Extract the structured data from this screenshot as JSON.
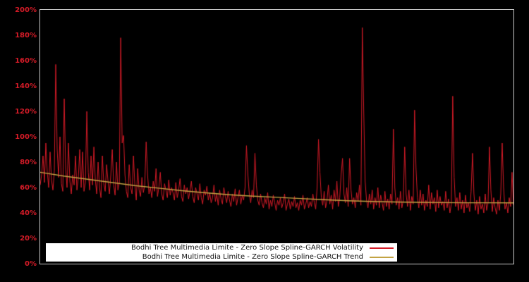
{
  "page": {
    "background": "#000000"
  },
  "chart": {
    "y_axis": {
      "ticks": [
        "0%",
        "20%",
        "40%",
        "60%",
        "80%",
        "100%",
        "120%",
        "140%",
        "160%",
        "180%",
        "200%"
      ],
      "min": 0,
      "max": 200,
      "tick_step": 20,
      "label_color": "#d41b27"
    },
    "colors": {
      "volatility_line": "#d41b27",
      "trend_line": "#c3a343",
      "frame": "#c9c9c9",
      "plot_background": "#000000",
      "legend_background": "#ffffff",
      "legend_text": "#111111"
    },
    "legend": [
      {
        "label": "Bodhi Tree Multimedia Limite - Zero Slope Spline-GARCH Volatility",
        "color": "#d41b27"
      },
      {
        "label": "Bodhi Tree Multimedia Limite - Zero Slope Spline-GARCH Trend",
        "color": "#c3a343"
      }
    ]
  },
  "chart_data": {
    "type": "line",
    "title": "",
    "xlabel": "",
    "ylabel": "",
    "ylim": [
      0,
      200
    ],
    "y_unit": "%",
    "grid": false,
    "legend_position": "bottom-center",
    "series": [
      {
        "name": "Bodhi Tree Multimedia Limite - Zero Slope Spline-GARCH Volatility",
        "color": "#d41b27",
        "note": "values in percent, evenly spaced across full x-range",
        "values": [
          62,
          70,
          85,
          64,
          95,
          72,
          60,
          88,
          66,
          58,
          73,
          157,
          90,
          68,
          100,
          63,
          57,
          130,
          75,
          60,
          95,
          65,
          55,
          70,
          62,
          85,
          58,
          68,
          90,
          60,
          88,
          57,
          64,
          120,
          72,
          58,
          85,
          62,
          92,
          66,
          55,
          80,
          60,
          52,
          85,
          63,
          57,
          78,
          65,
          55,
          70,
          90,
          62,
          54,
          80,
          58,
          64,
          178,
          95,
          101,
          70,
          57,
          52,
          78,
          60,
          55,
          85,
          62,
          50,
          75,
          58,
          53,
          68,
          56,
          62,
          96,
          70,
          55,
          60,
          52,
          65,
          57,
          75,
          53,
          60,
          72,
          55,
          50,
          63,
          58,
          52,
          66,
          54,
          60,
          56,
          50,
          64,
          52,
          58,
          67,
          53,
          49,
          62,
          55,
          60,
          51,
          57,
          65,
          53,
          48,
          60,
          55,
          50,
          63,
          52,
          47,
          58,
          54,
          61,
          50,
          56,
          48,
          52,
          62,
          49,
          55,
          46,
          58,
          51,
          47,
          60,
          53,
          48,
          57,
          50,
          45,
          55,
          49,
          59,
          46,
          52,
          58,
          47,
          54,
          50,
          60,
          93,
          70,
          55,
          48,
          58,
          52,
          87,
          62,
          50,
          46,
          55,
          48,
          44,
          52,
          47,
          56,
          43,
          50,
          45,
          54,
          48,
          42,
          50,
          46,
          52,
          44,
          48,
          55,
          42,
          47,
          51,
          43,
          49,
          45,
          53,
          44,
          48,
          42,
          50,
          46,
          54,
          43,
          47,
          52,
          44,
          49,
          45,
          55,
          48,
          43,
          60,
          98,
          72,
          52,
          46,
          57,
          44,
          50,
          62,
          47,
          54,
          43,
          58,
          49,
          65,
          45,
          52,
          70,
          83,
          55,
          48,
          60,
          45,
          83,
          58,
          47,
          52,
          44,
          56,
          49,
          62,
          46,
          186,
          120,
          65,
          50,
          44,
          55,
          47,
          58,
          43,
          52,
          46,
          60,
          44,
          54,
          48,
          42,
          57,
          45,
          51,
          43,
          55,
          47,
          106,
          60,
          46,
          52,
          43,
          57,
          44,
          50,
          92,
          55,
          45,
          58,
          42,
          53,
          47,
          121,
          75,
          52,
          44,
          58,
          46,
          55,
          42,
          50,
          45,
          62,
          43,
          56,
          47,
          52,
          41,
          58,
          44,
          53,
          46,
          49,
          42,
          57,
          44,
          51,
          40,
          47,
          132,
          68,
          45,
          52,
          42,
          56,
          43,
          50,
          40,
          54,
          44,
          48,
          41,
          57,
          87,
          55,
          42,
          50,
          39,
          53,
          43,
          47,
          40,
          55,
          42,
          48,
          92,
          58,
          41,
          52,
          44,
          39,
          50,
          42,
          55,
          95,
          60,
          43,
          48,
          40,
          52,
          45,
          72,
          46
        ]
      },
      {
        "name": "Bodhi Tree Multimedia Limite - Zero Slope Spline-GARCH Trend",
        "color": "#c3a343",
        "note": "values in percent, evenly spaced across full x-range; slope flattens to zero at right end",
        "values": [
          72,
          69,
          66.5,
          64,
          61.5,
          59.5,
          57.5,
          55.8,
          54.3,
          53.2,
          52.3,
          51.3,
          50.4,
          49.6,
          49.0,
          48.6,
          48.3,
          48.1,
          48.0,
          48.0,
          47.9
        ]
      }
    ]
  }
}
